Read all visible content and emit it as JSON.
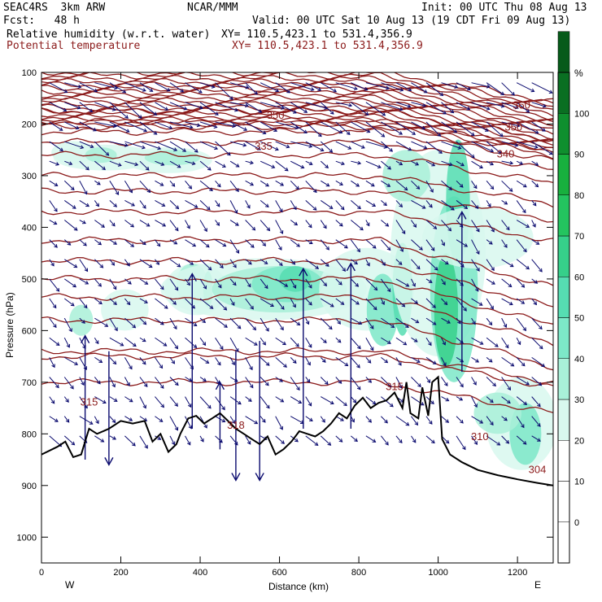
{
  "header": {
    "model": "SEAC4RS  3km ARW",
    "org": "NCAR/MMM",
    "init": "Init: 00 UTC Thu 08 Aug 13",
    "fcst": "Fcst:   48 h",
    "valid": "Valid: 00 UTC Sat 10 Aug 13 (19 CDT Fri 09 Aug 13)",
    "field1": "Relative humidity (w.r.t. water)",
    "field1_xy": "XY= 110.5,423.1 to 531.4,356.9",
    "field2": "Potential temperature",
    "field2_xy": "XY= 110.5,423.1 to 531.4,356.9"
  },
  "colors": {
    "theta": "#8b1a1a",
    "wind": "#0a0a6e",
    "terrain": "#000000",
    "rh_scale": [
      "#ffffff",
      "#ffffff",
      "#ffffff",
      "#d8f8ee",
      "#a9f0d8",
      "#7de8c8",
      "#56ddb2",
      "#36d08a",
      "#24c45f",
      "#18b03e",
      "#0f8f2e",
      "#0a6f22",
      "#075a1a"
    ]
  },
  "chart_data": {
    "type": "heatmap",
    "xlabel": "Distance (km)",
    "ylabel": "Pressure (hPa)",
    "xlim": [
      0,
      1290
    ],
    "ylim": [
      1050,
      100
    ],
    "x_ticks": [
      0,
      200,
      400,
      600,
      800,
      1000,
      1200
    ],
    "y_ticks": [
      100,
      200,
      300,
      400,
      500,
      600,
      700,
      800,
      900,
      1000
    ],
    "x_end_labels": [
      "W",
      "E"
    ],
    "colorbar": {
      "unit": "%",
      "ticks": [
        0,
        10,
        20,
        30,
        40,
        50,
        60,
        70,
        80,
        90,
        100
      ],
      "range": [
        -10,
        110
      ]
    },
    "theta_labels": [
      {
        "value": "360",
        "x": 1210,
        "p": 170
      },
      {
        "value": "350",
        "x": 590,
        "p": 190
      },
      {
        "value": "350",
        "x": 1190,
        "p": 213
      },
      {
        "value": "335",
        "x": 560,
        "p": 250
      },
      {
        "value": "340",
        "x": 1170,
        "p": 265
      },
      {
        "value": "315",
        "x": 120,
        "p": 745
      },
      {
        "value": "318",
        "x": 490,
        "p": 790
      },
      {
        "value": "315",
        "x": 890,
        "p": 715
      },
      {
        "value": "310",
        "x": 1105,
        "p": 812
      },
      {
        "value": "304",
        "x": 1250,
        "p": 876
      }
    ],
    "terrain_p": [
      [
        0,
        840
      ],
      [
        40,
        825
      ],
      [
        60,
        815
      ],
      [
        80,
        845
      ],
      [
        100,
        840
      ],
      [
        110,
        815
      ],
      [
        120,
        790
      ],
      [
        140,
        800
      ],
      [
        170,
        790
      ],
      [
        200,
        775
      ],
      [
        230,
        780
      ],
      [
        260,
        775
      ],
      [
        280,
        815
      ],
      [
        300,
        800
      ],
      [
        320,
        835
      ],
      [
        340,
        820
      ],
      [
        350,
        800
      ],
      [
        370,
        770
      ],
      [
        390,
        765
      ],
      [
        410,
        780
      ],
      [
        430,
        770
      ],
      [
        450,
        760
      ],
      [
        470,
        775
      ],
      [
        490,
        790
      ],
      [
        510,
        800
      ],
      [
        530,
        810
      ],
      [
        550,
        820
      ],
      [
        570,
        805
      ],
      [
        590,
        840
      ],
      [
        610,
        830
      ],
      [
        630,
        815
      ],
      [
        650,
        795
      ],
      [
        670,
        800
      ],
      [
        690,
        805
      ],
      [
        710,
        795
      ],
      [
        730,
        780
      ],
      [
        750,
        760
      ],
      [
        770,
        770
      ],
      [
        790,
        745
      ],
      [
        810,
        730
      ],
      [
        830,
        750
      ],
      [
        850,
        740
      ],
      [
        870,
        735
      ],
      [
        890,
        720
      ],
      [
        910,
        750
      ],
      [
        920,
        700
      ],
      [
        930,
        760
      ],
      [
        950,
        770
      ],
      [
        960,
        710
      ],
      [
        975,
        765
      ],
      [
        985,
        700
      ],
      [
        1000,
        690
      ],
      [
        1010,
        810
      ],
      [
        1030,
        840
      ],
      [
        1060,
        855
      ],
      [
        1100,
        870
      ],
      [
        1150,
        880
      ],
      [
        1200,
        888
      ],
      [
        1250,
        895
      ],
      [
        1290,
        900
      ]
    ]
  }
}
